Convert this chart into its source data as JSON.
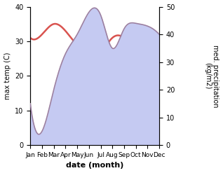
{
  "months": [
    "Jan",
    "Feb",
    "Mar",
    "Apr",
    "May",
    "Jun",
    "Jul",
    "Aug",
    "Sep",
    "Oct",
    "Nov",
    "Dec"
  ],
  "temp": [
    31,
    32,
    35,
    33,
    29,
    27,
    27,
    31,
    31,
    28,
    29,
    29
  ],
  "precip": [
    15,
    5,
    20,
    33,
    40,
    48,
    47,
    35,
    42,
    44,
    43,
    40
  ],
  "temp_color": "#d9534f",
  "precip_line_color": "#9b7fa0",
  "precip_fill_color": "#c5caf2",
  "xlabel": "date (month)",
  "ylabel_left": "max temp (C)",
  "ylabel_right": "med. precipitation\n(kg/m2)",
  "ylim_left": [
    0,
    40
  ],
  "ylim_right": [
    0,
    50
  ],
  "yticks_left": [
    0,
    10,
    20,
    30,
    40
  ],
  "yticks_right": [
    0,
    10,
    20,
    30,
    40,
    50
  ],
  "bg_color": "#ffffff"
}
